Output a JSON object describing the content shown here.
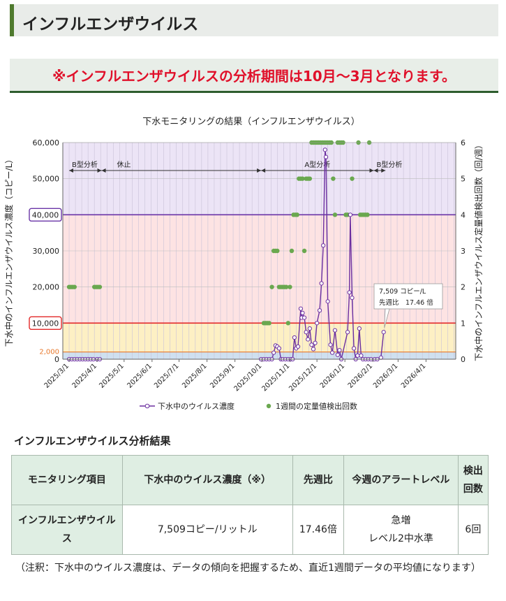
{
  "page": {
    "heading": "インフルエンザウイルス",
    "notice": "※インフルエンザウイルスの分析期間は10月～3月となります。",
    "results_title": "インフルエンザウイルス分析結果",
    "footnote": "（注釈：下水中のウイルス濃度は、データの傾向を把握するため、直近1週間データの平均値になります）"
  },
  "table": {
    "headers": [
      "モニタリング項目",
      "下水中のウイルス濃度（※）",
      "先週比",
      "今週のアラートレベル",
      "検出回数"
    ],
    "row": {
      "item": "インフルエンザウイルス",
      "concentration": "7,509コピー/リットル",
      "ratio": "17.46倍",
      "alert_line1": "急増",
      "alert_line2": "レベル2中水準",
      "count": "6回"
    }
  },
  "chart_data": {
    "type": "line",
    "title": "下水モニタリングの結果（インフルエンザウイルス）",
    "ylabel": "下水中のインフルエンザウイルス濃度（コピー/L）",
    "y2label": "下水中のインフルエンザウイルス定量値検出回数（回/週）",
    "ylim": [
      0,
      60000
    ],
    "y2lim": [
      0,
      6
    ],
    "yticks": [
      "0",
      "10,000",
      "20,000",
      "30,000",
      "40,000",
      "50,000",
      "60,000"
    ],
    "y2ticks": [
      "0",
      "1",
      "2",
      "3",
      "4",
      "5",
      "6"
    ],
    "xlim": [
      "2025-02-22",
      "2026-05-04"
    ],
    "xticks": [
      "2025/3/1",
      "2025/4/1",
      "2025/5/1",
      "2025/6/1",
      "2025/7/1",
      "2025/8/1",
      "2025/9/1",
      "2025/10/1",
      "2025/11/1",
      "2025/12/1",
      "2026/1/1",
      "2026/2/1",
      "2026/3/1",
      "2026/4/1"
    ],
    "grid": true,
    "legend": "bottom",
    "alert_bands": [
      {
        "from": 0,
        "to": 2000,
        "color": "#cfe0f0"
      },
      {
        "from": 2000,
        "to": 10000,
        "color": "#fdf0c4"
      },
      {
        "from": 10000,
        "to": 40000,
        "color": "#fde3e3"
      },
      {
        "from": 40000,
        "to": 60000,
        "color": "#ece4f6"
      }
    ],
    "threshold_lines": [
      {
        "value": 2000,
        "label": "2,000",
        "color": "#e8772a",
        "boxed": false
      },
      {
        "value": 10000,
        "label": "10,000",
        "color": "#e32828",
        "boxed": true
      },
      {
        "value": 40000,
        "label": "40,000",
        "color": "#6a35a6",
        "boxed": true
      }
    ],
    "period_labels": [
      {
        "label": "B型分析",
        "start": "2025-03-01",
        "end": "2025-04-06"
      },
      {
        "label": "休止",
        "start": "2025-04-06",
        "end": "2025-09-30"
      },
      {
        "label": "A型分析",
        "start": "2025-09-30",
        "end": "2026-02-02"
      },
      {
        "label": "B型分析",
        "start": "2026-02-02",
        "end": "2026-02-15"
      }
    ],
    "annotation": {
      "line1": "7,509 コピー/L",
      "line2": "先週比　17.46 倍",
      "x": "2026-02-13",
      "y": 7509
    },
    "series": [
      {
        "name": "下水中のウイルス濃度",
        "color": "#6b2fa0",
        "points": [
          [
            "2025-03-01",
            0
          ],
          [
            "2025-03-04",
            0
          ],
          [
            "2025-03-07",
            0
          ],
          [
            "2025-03-10",
            0
          ],
          [
            "2025-03-13",
            0
          ],
          [
            "2025-03-16",
            0
          ],
          [
            "2025-03-19",
            0
          ],
          [
            "2025-03-22",
            0
          ],
          [
            "2025-03-25",
            0
          ],
          [
            "2025-03-28",
            0
          ],
          [
            "2025-04-01",
            0
          ],
          [
            "2025-04-04",
            0
          ],
          [
            "2025-09-30",
            0
          ],
          [
            "2025-10-03",
            0
          ],
          [
            "2025-10-06",
            0
          ],
          [
            "2025-10-09",
            0
          ],
          [
            "2025-10-12",
            0
          ],
          [
            "2025-10-14",
            1800
          ],
          [
            "2025-10-16",
            3800
          ],
          [
            "2025-10-18",
            3500
          ],
          [
            "2025-10-20",
            3000
          ],
          [
            "2025-10-22",
            0
          ],
          [
            "2025-10-24",
            0
          ],
          [
            "2025-10-27",
            0
          ],
          [
            "2025-10-30",
            0
          ],
          [
            "2025-11-02",
            0
          ],
          [
            "2025-11-04",
            0
          ],
          [
            "2025-11-06",
            6000
          ],
          [
            "2025-11-08",
            3000
          ],
          [
            "2025-11-10",
            3500
          ],
          [
            "2025-11-13",
            14000
          ],
          [
            "2025-11-14",
            11500
          ],
          [
            "2025-11-15",
            12800
          ],
          [
            "2025-11-17",
            11500
          ],
          [
            "2025-11-19",
            7500
          ],
          [
            "2025-11-21",
            5500
          ],
          [
            "2025-11-23",
            8500
          ],
          [
            "2025-11-25",
            4000
          ],
          [
            "2025-11-27",
            2800
          ],
          [
            "2025-11-29",
            4500
          ],
          [
            "2025-12-01",
            10000
          ],
          [
            "2025-12-04",
            13500
          ],
          [
            "2025-12-06",
            21000
          ],
          [
            "2025-12-08",
            31500
          ],
          [
            "2025-12-10",
            58000
          ],
          [
            "2025-12-11",
            56000
          ],
          [
            "2025-12-13",
            16000
          ],
          [
            "2025-12-16",
            4000
          ],
          [
            "2025-12-18",
            1800
          ],
          [
            "2025-12-21",
            8000
          ],
          [
            "2025-12-24",
            1200
          ],
          [
            "2025-12-26",
            2500
          ],
          [
            "2025-12-28",
            0
          ],
          [
            "2026-01-04",
            7500
          ],
          [
            "2026-01-06",
            18500
          ],
          [
            "2026-01-07",
            40000
          ],
          [
            "2026-01-09",
            17000
          ],
          [
            "2026-01-11",
            3000
          ],
          [
            "2026-01-13",
            0
          ],
          [
            "2026-01-15",
            1000
          ],
          [
            "2026-01-17",
            8500
          ],
          [
            "2026-01-19",
            1000
          ],
          [
            "2026-01-21",
            0
          ],
          [
            "2026-01-24",
            0
          ],
          [
            "2026-01-27",
            0
          ],
          [
            "2026-01-30",
            0
          ],
          [
            "2026-02-03",
            0
          ],
          [
            "2026-02-06",
            0
          ],
          [
            "2026-02-10",
            430
          ],
          [
            "2026-02-13",
            7509
          ]
        ]
      },
      {
        "name": "1週間の定量値検出回数",
        "color": "#6aa84f",
        "axis": "right",
        "points": [
          [
            "2025-03-01",
            2
          ],
          [
            "2025-03-03",
            2
          ],
          [
            "2025-03-05",
            2
          ],
          [
            "2025-03-07",
            2
          ],
          [
            "2025-03-29",
            2
          ],
          [
            "2025-03-31",
            2
          ],
          [
            "2025-04-02",
            2
          ],
          [
            "2025-04-04",
            2
          ],
          [
            "2025-10-03",
            1
          ],
          [
            "2025-10-05",
            1
          ],
          [
            "2025-10-07",
            1
          ],
          [
            "2025-10-09",
            1
          ],
          [
            "2025-10-12",
            2
          ],
          [
            "2025-10-14",
            3
          ],
          [
            "2025-10-16",
            3
          ],
          [
            "2025-10-18",
            3
          ],
          [
            "2025-10-20",
            2
          ],
          [
            "2025-10-22",
            2
          ],
          [
            "2025-10-24",
            2
          ],
          [
            "2025-10-26",
            2
          ],
          [
            "2025-10-28",
            2
          ],
          [
            "2025-10-30",
            1
          ],
          [
            "2025-11-01",
            2
          ],
          [
            "2025-11-03",
            3
          ],
          [
            "2025-11-05",
            4
          ],
          [
            "2025-11-07",
            4
          ],
          [
            "2025-11-09",
            4
          ],
          [
            "2025-11-11",
            5
          ],
          [
            "2025-11-13",
            5
          ],
          [
            "2025-11-15",
            5
          ],
          [
            "2025-11-17",
            3
          ],
          [
            "2025-11-19",
            5
          ],
          [
            "2025-11-21",
            5
          ],
          [
            "2025-11-23",
            5
          ],
          [
            "2025-11-25",
            6
          ],
          [
            "2025-11-27",
            6
          ],
          [
            "2025-11-29",
            6
          ],
          [
            "2025-12-01",
            6
          ],
          [
            "2025-12-03",
            6
          ],
          [
            "2025-12-05",
            6
          ],
          [
            "2025-12-07",
            6
          ],
          [
            "2025-12-09",
            6
          ],
          [
            "2025-12-11",
            6
          ],
          [
            "2025-12-13",
            6
          ],
          [
            "2025-12-15",
            6
          ],
          [
            "2025-12-17",
            6
          ],
          [
            "2025-12-19",
            5
          ],
          [
            "2025-12-21",
            4
          ],
          [
            "2025-12-24",
            6
          ],
          [
            "2025-12-26",
            6
          ],
          [
            "2025-12-28",
            6
          ],
          [
            "2025-12-30",
            6
          ],
          [
            "2026-01-02",
            4
          ],
          [
            "2026-01-04",
            4
          ],
          [
            "2026-01-09",
            5
          ],
          [
            "2026-01-16",
            6
          ],
          [
            "2026-01-18",
            4
          ],
          [
            "2026-01-20",
            4
          ],
          [
            "2026-01-22",
            4
          ],
          [
            "2026-01-24",
            4
          ],
          [
            "2026-01-26",
            4
          ],
          [
            "2026-01-28",
            6
          ]
        ]
      }
    ]
  }
}
